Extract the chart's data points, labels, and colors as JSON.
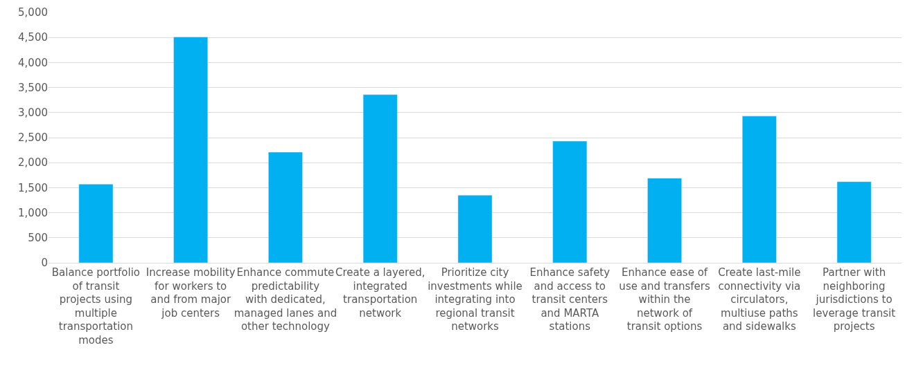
{
  "chart_data": {
    "type": "bar",
    "categories": [
      "Balance portfolio of transit projects using multiple transportation modes",
      "Increase mobility for workers to and from major job centers",
      "Enhance commute predictability with dedicated, managed lanes and other technology",
      "Create a layered, integrated transportation network",
      "Prioritize city investments while integrating into regional transit networks",
      "Enhance safety and access to transit centers and MARTA stations",
      "Enhance ease of use and transfers within the network of transit options",
      "Create last-mile connectivity via circulators, multiuse paths and sidewalks",
      "Partner with neighboring jurisdictions to leverage transit projects"
    ],
    "values": [
      1570,
      4510,
      2210,
      3360,
      1350,
      2430,
      1690,
      2930,
      1620
    ],
    "color": "#00b0f0",
    "ylim": [
      0,
      5000
    ],
    "yticks": [
      {
        "value": 0,
        "label": "0"
      },
      {
        "value": 500,
        "label": "500"
      },
      {
        "value": 1000,
        "label": "1,000"
      },
      {
        "value": 1500,
        "label": "1,500"
      },
      {
        "value": 2000,
        "label": "2,000"
      },
      {
        "value": 2500,
        "label": "2,500"
      },
      {
        "value": 3000,
        "label": "3,000"
      },
      {
        "value": 3500,
        "label": "3,500"
      },
      {
        "value": 4000,
        "label": "4,000"
      },
      {
        "value": 4500,
        "label": "4,500"
      },
      {
        "value": 5000,
        "label": "5,000"
      }
    ],
    "grid": "y",
    "legend": false
  }
}
